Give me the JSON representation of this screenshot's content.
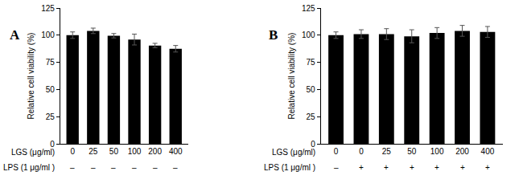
{
  "chart_data": [
    {
      "type": "bar",
      "title": "A",
      "y_label": "Relative cell viability (%)",
      "x_label": "LGS (μg/ml)",
      "categories": [
        "0",
        "25",
        "50",
        "100",
        "200",
        "400"
      ],
      "values": [
        100,
        104,
        99.5,
        96,
        90.5,
        87.5
      ],
      "errors": [
        3,
        2.5,
        2,
        5,
        2,
        3
      ],
      "second_row": {
        "label": "LPS (1 μg/ml )",
        "values": [
          "–",
          "–",
          "–",
          "–",
          "–",
          "–"
        ]
      },
      "color": "#000000",
      "ylim": [
        0,
        125
      ],
      "yticks": [
        0,
        25,
        50,
        75,
        100,
        125
      ],
      "grid": false
    },
    {
      "type": "bar",
      "title": "B",
      "y_label": "Relative cell viability (%)",
      "x_label": "LGS (μg/ml)",
      "categories": [
        "0",
        "0",
        "25",
        "50",
        "100",
        "200",
        "400"
      ],
      "values": [
        100,
        101,
        101,
        99,
        102,
        104,
        103
      ],
      "errors": [
        3,
        4,
        5,
        6,
        5,
        5,
        5
      ],
      "second_row": {
        "label": "LPS (1 μg/ml )",
        "values": [
          "–",
          "+",
          "+",
          "+",
          "+",
          "+",
          "+"
        ]
      },
      "color": "#000000",
      "ylim": [
        0,
        125
      ],
      "yticks": [
        0,
        25,
        50,
        75,
        100,
        125
      ],
      "grid": false
    }
  ]
}
